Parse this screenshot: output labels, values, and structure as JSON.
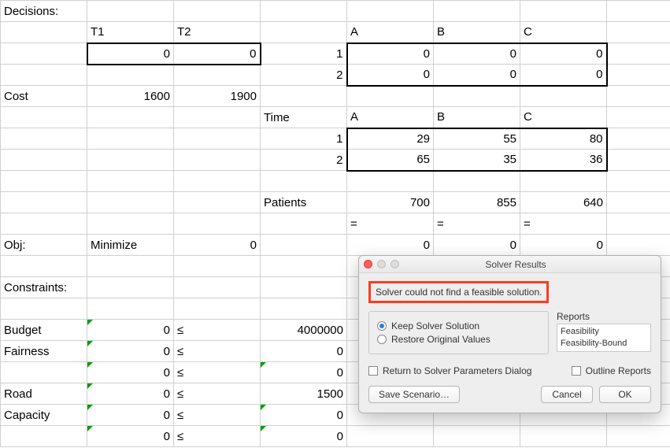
{
  "sheet": {
    "r0": {
      "c0": "Decisions:"
    },
    "r1": {
      "c1": "T1",
      "c2": "T2",
      "c4": "A",
      "c5": "B",
      "c6": "C"
    },
    "r2": {
      "c1": "0",
      "c2": "0",
      "c3": "1",
      "c4": "0",
      "c5": "0",
      "c6": "0"
    },
    "r3": {
      "c3": "2",
      "c4": "0",
      "c5": "0",
      "c6": "0"
    },
    "r4": {
      "c0": "Cost",
      "c1": "1600",
      "c2": "1900"
    },
    "r5": {
      "c3": "Time",
      "c4": "A",
      "c5": "B",
      "c6": "C"
    },
    "r6": {
      "c3": "1",
      "c4": "29",
      "c5": "55",
      "c6": "80"
    },
    "r7": {
      "c3": "2",
      "c4": "65",
      "c5": "35",
      "c6": "36"
    },
    "r9": {
      "c3": "Patients",
      "c4": "700",
      "c5": "855",
      "c6": "640"
    },
    "r10": {
      "c4": "=",
      "c5": "=",
      "c6": "="
    },
    "r11": {
      "c0": "Obj:",
      "c1": "Minimize",
      "c2": "0",
      "c4": "0",
      "c5": "0",
      "c6": "0"
    },
    "r13": {
      "c0": "Constraints:"
    },
    "r15": {
      "c0": "Budget",
      "c1": "0",
      "c2": "≤",
      "c3": "4000000"
    },
    "r16": {
      "c0": "Fairness",
      "c1": "0",
      "c2": "≤",
      "c3": "0"
    },
    "r17": {
      "c1": "0",
      "c2": "≤",
      "c3": "0"
    },
    "r18": {
      "c0": "Road",
      "c1": "0",
      "c2": "≤",
      "c3": "1500"
    },
    "r19": {
      "c0": "Capacity",
      "c1": "0",
      "c2": "≤",
      "c3": "0"
    },
    "r20": {
      "c1": "0",
      "c2": "≤",
      "c3": "0"
    }
  },
  "dialog": {
    "title": "Solver Results",
    "message": "Solver could not find a feasible solution.",
    "radio_keep": "Keep Solver Solution",
    "radio_restore": "Restore Original Values",
    "reports_label": "Reports",
    "report1": "Feasibility",
    "report2": "Feasibility-Bound",
    "return_label": "Return to Solver Parameters Dialog",
    "outline_label": "Outline Reports",
    "save_btn": "Save Scenario…",
    "cancel_btn": "Cancel",
    "ok_btn": "OK"
  },
  "colors": {
    "grid": "#d0d0d0",
    "thick": "#000000",
    "green_tri": "#00a000",
    "dialog_bg": "#eeeeee",
    "highlight": "#ff3b1f",
    "radio_dot": "#2a7de1"
  }
}
